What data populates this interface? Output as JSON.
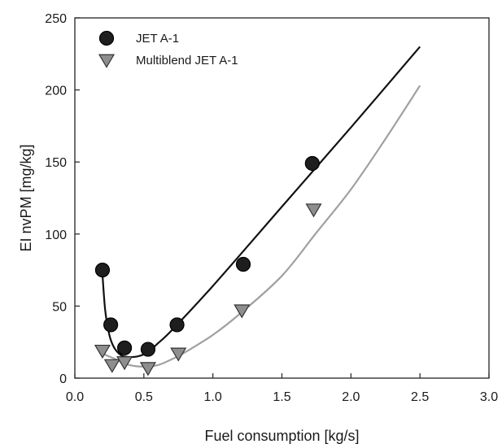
{
  "chart_data": {
    "type": "scatter",
    "xlabel": "Fuel consumption [kg/s]",
    "ylabel": "EI nvPM [mg/kg]",
    "xlim": [
      0,
      3
    ],
    "ylim": [
      0,
      250
    ],
    "xticks": [
      "0.0",
      "0.5",
      "1.0",
      "1.5",
      "2.0",
      "2.5",
      "3.0"
    ],
    "xtick_values": [
      0,
      0.5,
      1.0,
      1.5,
      2.0,
      2.5,
      3.0
    ],
    "yticks": [
      "0",
      "50",
      "100",
      "150",
      "200",
      "250"
    ],
    "ytick_values": [
      0,
      50,
      100,
      150,
      200,
      250
    ],
    "grid": false,
    "legend_position": "top-left",
    "series": [
      {
        "name": "JET A-1",
        "marker": "circle",
        "color": "#1e1e1e",
        "fit_color": "#111111",
        "points": [
          {
            "x": 0.2,
            "y": 75
          },
          {
            "x": 0.26,
            "y": 37
          },
          {
            "x": 0.36,
            "y": 21
          },
          {
            "x": 0.53,
            "y": 20
          },
          {
            "x": 0.74,
            "y": 37
          },
          {
            "x": 1.22,
            "y": 79
          },
          {
            "x": 1.72,
            "y": 149
          }
        ],
        "fit": [
          {
            "x": 0.2,
            "y": 72
          },
          {
            "x": 0.22,
            "y": 47
          },
          {
            "x": 0.25,
            "y": 30
          },
          {
            "x": 0.28,
            "y": 22
          },
          {
            "x": 0.32,
            "y": 17
          },
          {
            "x": 0.36,
            "y": 15
          },
          {
            "x": 0.45,
            "y": 15
          },
          {
            "x": 0.53,
            "y": 18
          },
          {
            "x": 0.6,
            "y": 24
          },
          {
            "x": 0.7,
            "y": 33
          },
          {
            "x": 1.0,
            "y": 64
          },
          {
            "x": 1.5,
            "y": 119
          },
          {
            "x": 2.0,
            "y": 174
          },
          {
            "x": 2.5,
            "y": 230
          }
        ]
      },
      {
        "name": "Multiblend JET A-1",
        "marker": "triangle-down",
        "color": "#8e8e8e",
        "fit_color": "#a0a0a0",
        "points": [
          {
            "x": 0.2,
            "y": 19
          },
          {
            "x": 0.27,
            "y": 9
          },
          {
            "x": 0.36,
            "y": 11
          },
          {
            "x": 0.53,
            "y": 7
          },
          {
            "x": 0.75,
            "y": 17
          },
          {
            "x": 1.21,
            "y": 47
          },
          {
            "x": 1.73,
            "y": 117
          }
        ],
        "fit": [
          {
            "x": 0.2,
            "y": 17
          },
          {
            "x": 0.3,
            "y": 13
          },
          {
            "x": 0.4,
            "y": 9
          },
          {
            "x": 0.5,
            "y": 8
          },
          {
            "x": 0.6,
            "y": 9
          },
          {
            "x": 0.7,
            "y": 13
          },
          {
            "x": 0.8,
            "y": 18
          },
          {
            "x": 1.0,
            "y": 30
          },
          {
            "x": 1.2,
            "y": 45
          },
          {
            "x": 1.5,
            "y": 71
          },
          {
            "x": 1.75,
            "y": 101
          },
          {
            "x": 2.0,
            "y": 131
          },
          {
            "x": 2.25,
            "y": 166
          },
          {
            "x": 2.5,
            "y": 203
          }
        ]
      }
    ]
  }
}
